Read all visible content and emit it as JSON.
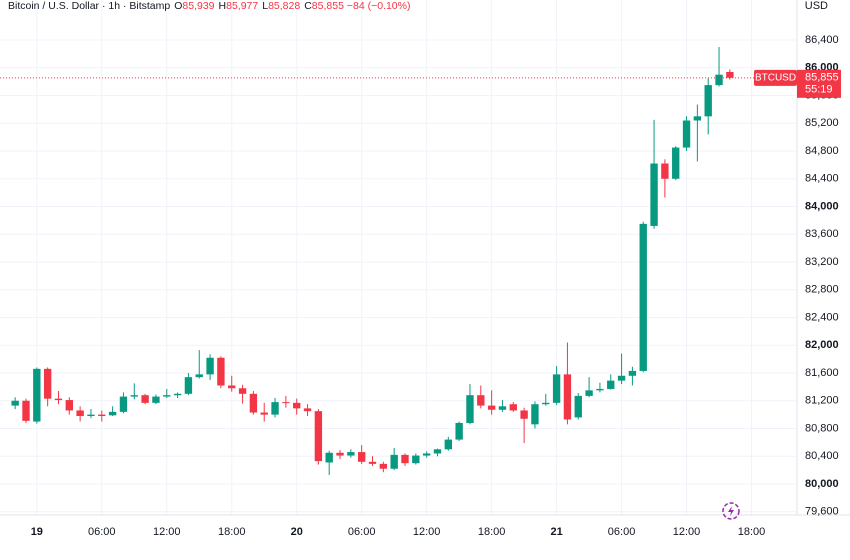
{
  "header": {
    "symbol": "Bitcoin / U.S. Dollar · 1h · Bitstamp",
    "ohlc": [
      {
        "key": "O",
        "value": "85,939"
      },
      {
        "key": "H",
        "value": "85,977"
      },
      {
        "key": "L",
        "value": "85,828"
      },
      {
        "key": "C",
        "value": "85,855"
      }
    ],
    "change": "−84 (−0.10%)",
    "currency": "USD"
  },
  "chart_data": {
    "type": "candlestick",
    "up_color": "#089981",
    "down_color": "#f23645",
    "x": [
      -2,
      -1,
      0,
      1,
      2,
      3,
      4,
      5,
      6,
      7,
      8,
      9,
      10,
      11,
      12,
      13,
      14,
      15,
      16,
      17,
      18,
      19,
      20,
      21,
      22,
      23,
      24,
      25,
      26,
      27,
      28,
      29,
      30,
      31,
      32,
      33,
      34,
      35,
      36,
      37,
      38,
      39,
      40,
      41,
      42,
      43,
      44,
      45,
      46,
      47,
      48,
      49,
      50,
      51,
      52,
      53,
      54,
      55,
      56,
      57,
      58,
      59,
      60,
      61,
      62,
      63,
      64
    ],
    "open": [
      81130,
      81200,
      80900,
      81660,
      81230,
      81210,
      81060,
      80980,
      81000,
      80990,
      81040,
      81260,
      81280,
      81170,
      81260,
      81280,
      81300,
      81540,
      81580,
      81820,
      81420,
      81380,
      81300,
      81030,
      81000,
      81180,
      81170,
      81090,
      81050,
      80310,
      80450,
      80410,
      80460,
      80320,
      80290,
      80220,
      80420,
      80300,
      80410,
      80440,
      80500,
      80640,
      80880,
      81280,
      81130,
      81070,
      81150,
      81060,
      80860,
      81150,
      81170,
      81580,
      80960,
      81270,
      81350,
      81370,
      81490,
      81560,
      81630,
      83720,
      84620,
      84400,
      84850,
      85240,
      85300,
      85750,
      85939
    ],
    "high": [
      81250,
      81230,
      81680,
      81680,
      81340,
      81250,
      81120,
      81080,
      81060,
      81120,
      81320,
      81450,
      81300,
      81290,
      81370,
      81320,
      81600,
      81930,
      81870,
      81840,
      81560,
      81430,
      81340,
      81170,
      81240,
      81270,
      81230,
      81150,
      81080,
      80480,
      80490,
      80500,
      80560,
      80400,
      80320,
      80520,
      80440,
      80440,
      80470,
      80510,
      80680,
      80900,
      81440,
      81420,
      81350,
      81210,
      81180,
      81100,
      81190,
      81300,
      81700,
      82040,
      81310,
      81540,
      81460,
      81580,
      81880,
      81690,
      83780,
      85250,
      84680,
      84870,
      85300,
      85470,
      85850,
      86300,
      85977
    ],
    "low": [
      81080,
      80880,
      80870,
      81120,
      81150,
      81000,
      80900,
      80950,
      80900,
      80980,
      81020,
      81220,
      81150,
      81150,
      81240,
      81240,
      81280,
      81520,
      81500,
      81380,
      81330,
      81160,
      81000,
      80900,
      80960,
      81100,
      81000,
      80980,
      80280,
      80130,
      80360,
      80380,
      80290,
      80260,
      80170,
      80200,
      80260,
      80280,
      80380,
      80400,
      80480,
      80620,
      80860,
      81090,
      81000,
      81040,
      81040,
      80590,
      80800,
      81130,
      81140,
      80860,
      80930,
      81250,
      81320,
      81360,
      81440,
      81420,
      81610,
      83680,
      84130,
      84380,
      84800,
      84650,
      85040,
      85730,
      85828
    ],
    "close": [
      81200,
      80910,
      81660,
      81230,
      81210,
      81060,
      80980,
      81000,
      80980,
      81040,
      81260,
      81280,
      81170,
      81260,
      81280,
      81300,
      81540,
      81580,
      81820,
      81420,
      81380,
      81300,
      81030,
      81000,
      81180,
      81170,
      81090,
      81050,
      80330,
      80450,
      80410,
      80460,
      80320,
      80290,
      80220,
      80420,
      80300,
      80410,
      80440,
      80500,
      80640,
      80880,
      81280,
      81130,
      81070,
      81120,
      81060,
      80940,
      81150,
      81170,
      81580,
      80930,
      81270,
      81350,
      81370,
      81490,
      81560,
      81630,
      83750,
      84620,
      84400,
      84850,
      85240,
      85300,
      85750,
      85900,
      85855
    ],
    "xlim": [
      -3.4,
      70.2
    ],
    "xticks": [
      {
        "value": 0,
        "label": "19"
      },
      {
        "value": 6,
        "label": "06:00"
      },
      {
        "value": 12,
        "label": "12:00"
      },
      {
        "value": 18,
        "label": "18:00"
      },
      {
        "value": 24,
        "label": "20"
      },
      {
        "value": 30,
        "label": "06:00"
      },
      {
        "value": 36,
        "label": "12:00"
      },
      {
        "value": 42,
        "label": "18:00"
      },
      {
        "value": 48,
        "label": "21"
      },
      {
        "value": 54,
        "label": "06:00"
      },
      {
        "value": 60,
        "label": "12:00"
      },
      {
        "value": 66,
        "label": "18:00"
      }
    ],
    "ylim": [
      79553,
      86977
    ],
    "yticks": [
      {
        "value": 79600,
        "label": "79,600"
      },
      {
        "value": 80000,
        "label": "80,000"
      },
      {
        "value": 80400,
        "label": "80,400"
      },
      {
        "value": 80800,
        "label": "80,800"
      },
      {
        "value": 81200,
        "label": "81,200"
      },
      {
        "value": 81600,
        "label": "81,600"
      },
      {
        "value": 82000,
        "label": "82,000"
      },
      {
        "value": 82400,
        "label": "82,400"
      },
      {
        "value": 82800,
        "label": "82,800"
      },
      {
        "value": 83200,
        "label": "83,200"
      },
      {
        "value": 83600,
        "label": "83,600"
      },
      {
        "value": 84000,
        "label": "84,000"
      },
      {
        "value": 84400,
        "label": "84,400"
      },
      {
        "value": 84800,
        "label": "84,800"
      },
      {
        "value": 85200,
        "label": "85,200"
      },
      {
        "value": 85600,
        "label": "85,600"
      },
      {
        "value": 86000,
        "label": "86,000"
      },
      {
        "value": 86400,
        "label": "86,400"
      }
    ],
    "grid": true,
    "last_price": {
      "value": 85855,
      "label": "85,855",
      "symbol": "BTCUSD",
      "countdown": "55:19"
    }
  }
}
